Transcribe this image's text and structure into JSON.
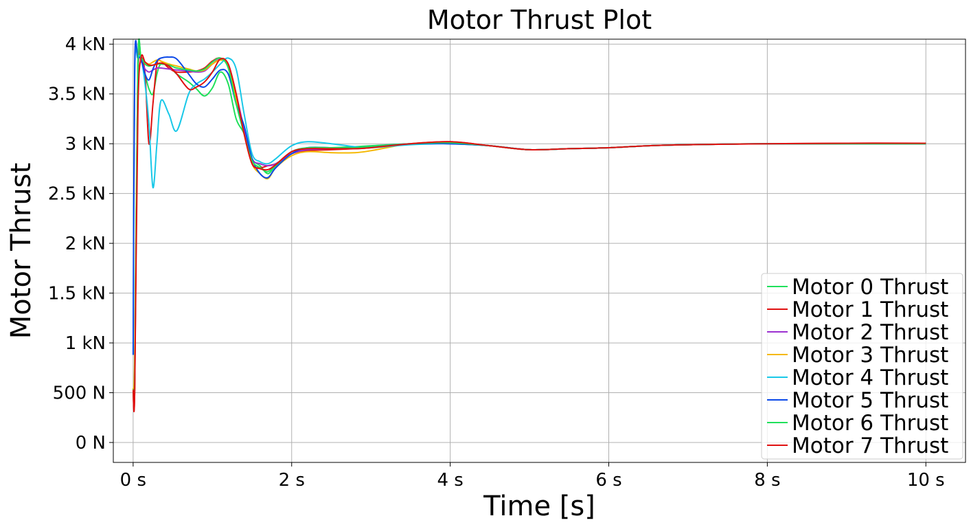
{
  "chart_data": {
    "type": "line",
    "title": "Motor Thrust Plot",
    "xlabel": "Time [s]",
    "ylabel": "Motor Thrust",
    "xlim": [
      -0.25,
      10.5
    ],
    "ylim": [
      -200,
      4050
    ],
    "xticks": [
      0,
      2,
      4,
      6,
      8,
      10
    ],
    "xtick_labels": [
      "0 s",
      "2 s",
      "4 s",
      "6 s",
      "8 s",
      "10 s"
    ],
    "yticks": [
      0,
      500,
      1000,
      1500,
      2000,
      2500,
      3000,
      3500,
      4000
    ],
    "ytick_labels": [
      "0 N",
      "500 N",
      "1 kN",
      "1.5 kN",
      "2 kN",
      "2.5 kN",
      "3 kN",
      "3.5 kN",
      "4 kN"
    ],
    "grid": true,
    "legend_position": "lower-right",
    "series": [
      {
        "name": "Motor 0 Thrust",
        "color": "#1ee05a",
        "x": [
          0,
          0.02,
          0.06,
          0.1,
          0.15,
          0.2,
          0.25,
          0.3,
          0.35,
          0.45,
          0.55,
          0.7,
          0.8,
          0.9,
          1.0,
          1.1,
          1.2,
          1.3,
          1.4,
          1.5,
          1.6,
          1.7,
          1.8,
          2.0,
          2.2,
          2.5,
          2.8,
          3.0,
          3.5,
          4.0,
          4.5,
          5.0,
          5.5,
          6.0,
          6.5,
          7.0,
          8.0,
          9.0,
          10.0
        ],
        "y": [
          530,
          700,
          3800,
          3850,
          3700,
          3550,
          3500,
          3700,
          3800,
          3780,
          3700,
          3620,
          3550,
          3480,
          3560,
          3720,
          3600,
          3250,
          3100,
          2850,
          2780,
          2700,
          2780,
          2900,
          2950,
          2960,
          2970,
          2980,
          3000,
          3000,
          2980,
          2940,
          2950,
          2960,
          2980,
          2990,
          3000,
          3000,
          3000
        ]
      },
      {
        "name": "Motor 1 Thrust",
        "color": "#e01010",
        "x": [
          0,
          0.02,
          0.06,
          0.1,
          0.15,
          0.2,
          0.25,
          0.3,
          0.35,
          0.45,
          0.55,
          0.7,
          0.8,
          0.9,
          1.0,
          1.1,
          1.2,
          1.3,
          1.4,
          1.5,
          1.6,
          1.7,
          1.8,
          2.0,
          2.2,
          2.5,
          2.8,
          3.0,
          3.5,
          4.0,
          4.5,
          5.0,
          5.5,
          6.0,
          6.5,
          7.0,
          8.0,
          9.0,
          10.0
        ],
        "y": [
          530,
          540,
          3600,
          3860,
          3700,
          3000,
          3400,
          3800,
          3830,
          3760,
          3720,
          3720,
          3730,
          3760,
          3830,
          3860,
          3780,
          3500,
          3100,
          2800,
          2760,
          2780,
          2800,
          2900,
          2930,
          2940,
          2950,
          2960,
          3000,
          3020,
          2980,
          2940,
          2950,
          2960,
          2980,
          2990,
          3000,
          3005,
          3005
        ]
      },
      {
        "name": "Motor 2 Thrust",
        "color": "#9b30d0",
        "x": [
          0,
          0.02,
          0.06,
          0.1,
          0.15,
          0.2,
          0.25,
          0.3,
          0.35,
          0.45,
          0.55,
          0.7,
          0.8,
          0.9,
          1.0,
          1.1,
          1.2,
          1.3,
          1.4,
          1.5,
          1.6,
          1.7,
          1.8,
          2.0,
          2.2,
          2.5,
          2.8,
          3.0,
          3.5,
          4.0,
          4.5,
          5.0,
          5.5,
          6.0,
          6.5,
          7.0,
          8.0,
          9.0,
          10.0
        ],
        "y": [
          530,
          800,
          3750,
          3820,
          3750,
          3720,
          3740,
          3760,
          3760,
          3750,
          3740,
          3730,
          3720,
          3730,
          3800,
          3850,
          3800,
          3500,
          3150,
          2850,
          2800,
          2780,
          2800,
          2900,
          2940,
          2950,
          2960,
          2970,
          3000,
          3010,
          2980,
          2940,
          2950,
          2960,
          2980,
          2990,
          3000,
          3000,
          3000
        ]
      },
      {
        "name": "Motor 3 Thrust",
        "color": "#f5b800",
        "x": [
          0,
          0.02,
          0.06,
          0.1,
          0.15,
          0.2,
          0.25,
          0.3,
          0.35,
          0.45,
          0.55,
          0.7,
          0.8,
          0.9,
          1.0,
          1.1,
          1.2,
          1.3,
          1.4,
          1.5,
          1.6,
          1.7,
          1.8,
          2.0,
          2.2,
          2.5,
          2.8,
          3.0,
          3.5,
          4.0,
          4.5,
          5.0,
          5.5,
          6.0,
          6.5,
          7.0,
          8.0,
          9.0,
          10.0
        ],
        "y": [
          530,
          900,
          3800,
          3850,
          3820,
          3800,
          3820,
          3840,
          3830,
          3800,
          3780,
          3750,
          3730,
          3740,
          3800,
          3840,
          3780,
          3450,
          3100,
          2800,
          2700,
          2650,
          2760,
          2880,
          2920,
          2910,
          2910,
          2930,
          3000,
          3010,
          2980,
          2940,
          2950,
          2960,
          2980,
          2990,
          3000,
          3000,
          3000
        ]
      },
      {
        "name": "Motor 4 Thrust",
        "color": "#18c8e8",
        "x": [
          0,
          0.02,
          0.06,
          0.1,
          0.15,
          0.2,
          0.25,
          0.3,
          0.35,
          0.45,
          0.55,
          0.7,
          0.8,
          0.9,
          1.0,
          1.1,
          1.2,
          1.3,
          1.4,
          1.5,
          1.6,
          1.7,
          1.8,
          2.0,
          2.2,
          2.5,
          2.8,
          3.0,
          3.5,
          4.0,
          4.5,
          5.0,
          5.5,
          6.0,
          6.5,
          7.0,
          8.0,
          9.0,
          10.0
        ],
        "y": [
          880,
          3700,
          3860,
          3860,
          3600,
          3200,
          2560,
          3000,
          3430,
          3300,
          3130,
          3500,
          3600,
          3650,
          3720,
          3800,
          3860,
          3750,
          3300,
          2900,
          2820,
          2800,
          2850,
          2980,
          3020,
          3000,
          2970,
          2960,
          2990,
          3000,
          2980,
          2940,
          2950,
          2960,
          2980,
          2990,
          3000,
          3000,
          3000
        ]
      },
      {
        "name": "Motor 5 Thrust",
        "color": "#0a48e8",
        "x": [
          0,
          0.02,
          0.06,
          0.1,
          0.15,
          0.2,
          0.25,
          0.3,
          0.35,
          0.45,
          0.55,
          0.7,
          0.8,
          0.9,
          1.0,
          1.1,
          1.2,
          1.3,
          1.4,
          1.5,
          1.6,
          1.7,
          1.8,
          2.0,
          2.2,
          2.5,
          2.8,
          3.0,
          3.5,
          4.0,
          4.5,
          5.0,
          5.5,
          6.0,
          6.5,
          7.0,
          8.0,
          9.0,
          10.0
        ],
        "y": [
          880,
          3800,
          3860,
          3850,
          3700,
          3640,
          3750,
          3830,
          3860,
          3870,
          3850,
          3700,
          3600,
          3570,
          3650,
          3740,
          3700,
          3400,
          3180,
          2850,
          2700,
          2660,
          2760,
          2900,
          2960,
          2960,
          2960,
          2970,
          3000,
          3000,
          2980,
          2940,
          2950,
          2960,
          2980,
          2990,
          3000,
          3000,
          3000
        ]
      },
      {
        "name": "Motor 6 Thrust",
        "color": "#1ee05a",
        "x": [
          0,
          0.02,
          0.06,
          0.1,
          0.15,
          0.2,
          0.25,
          0.3,
          0.35,
          0.45,
          0.55,
          0.7,
          0.8,
          0.9,
          1.0,
          1.1,
          1.2,
          1.3,
          1.4,
          1.5,
          1.6,
          1.7,
          1.8,
          2.0,
          2.2,
          2.5,
          2.8,
          3.0,
          3.5,
          4.0,
          4.5,
          5.0,
          5.5,
          6.0,
          6.5,
          7.0,
          8.0,
          9.0,
          10.0
        ],
        "y": [
          530,
          650,
          3780,
          3860,
          3800,
          3780,
          3790,
          3800,
          3800,
          3790,
          3760,
          3740,
          3730,
          3750,
          3820,
          3860,
          3760,
          3400,
          3100,
          2830,
          2760,
          2720,
          2790,
          2920,
          2960,
          2960,
          2960,
          2970,
          3000,
          3010,
          2980,
          2940,
          2950,
          2960,
          2980,
          2990,
          3000,
          3000,
          3000
        ]
      },
      {
        "name": "Motor 7 Thrust",
        "color": "#e01010",
        "x": [
          0,
          0.02,
          0.06,
          0.1,
          0.15,
          0.2,
          0.25,
          0.3,
          0.35,
          0.45,
          0.55,
          0.7,
          0.8,
          0.9,
          1.0,
          1.1,
          1.2,
          1.3,
          1.4,
          1.5,
          1.6,
          1.7,
          1.8,
          2.0,
          2.2,
          2.5,
          2.8,
          3.0,
          3.5,
          4.0,
          4.5,
          5.0,
          5.5,
          6.0,
          6.5,
          7.0,
          8.0,
          9.0,
          10.0
        ],
        "y": [
          530,
          530,
          3300,
          3860,
          3820,
          3790,
          3790,
          3800,
          3810,
          3780,
          3700,
          3550,
          3570,
          3620,
          3720,
          3850,
          3800,
          3500,
          3100,
          2800,
          2750,
          2740,
          2790,
          2920,
          2950,
          2950,
          2950,
          2960,
          3000,
          3020,
          2980,
          2940,
          2950,
          2960,
          2980,
          2990,
          3000,
          3005,
          3005
        ]
      }
    ]
  }
}
